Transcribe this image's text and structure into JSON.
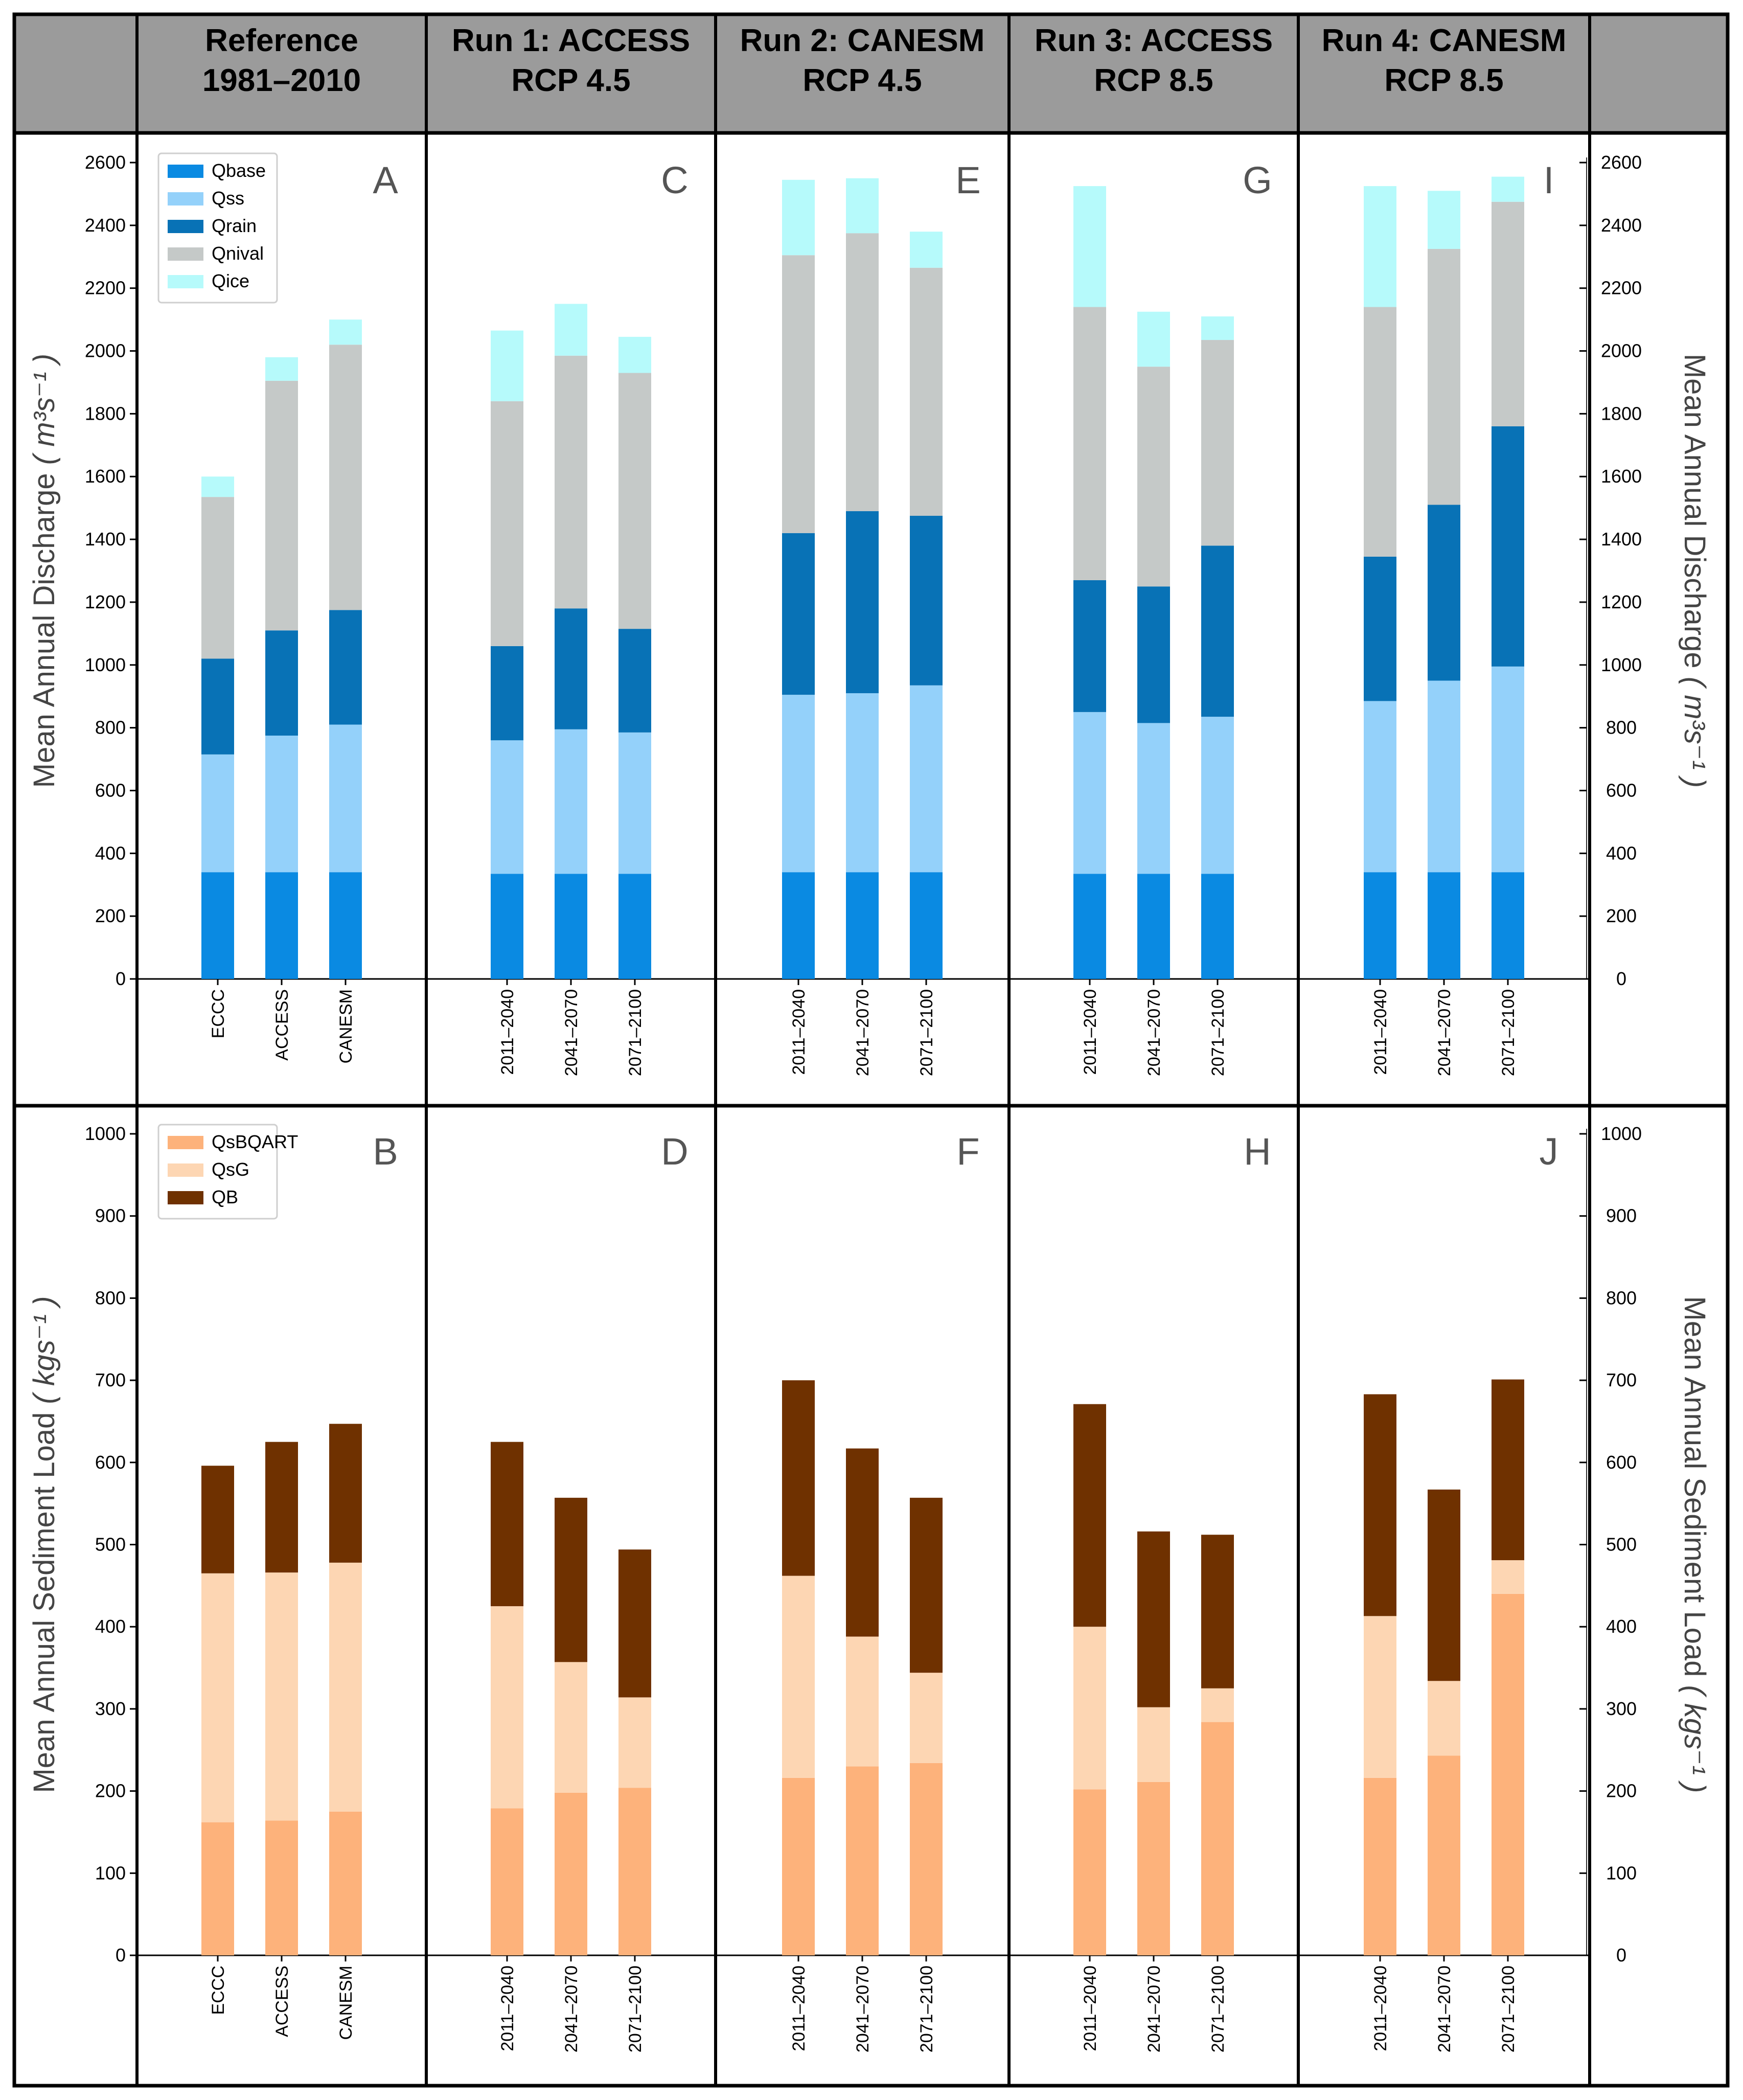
{
  "figure": {
    "headers": [
      {
        "line1": "Reference",
        "line2": "1981–2010"
      },
      {
        "line1": "Run 1: ACCESS",
        "line2": "RCP 4.5"
      },
      {
        "line1": "Run 2: CANESM",
        "line2": "RCP 4.5"
      },
      {
        "line1": "Run 3: ACCESS",
        "line2": "RCP 8.5"
      },
      {
        "line1": "Run 4: CANESM",
        "line2": "RCP 8.5"
      }
    ],
    "colors": {
      "header_bg": "#9b9b9b",
      "Qbase": "#0a8ae2",
      "Qss": "#94d1fa",
      "Qrain": "#0872b6",
      "Qnival": "#c5c9c8",
      "Qice": "#b6fafb",
      "QsBQART": "#fdb27b",
      "QsG": "#fdd6b3",
      "QB": "#6f3100"
    }
  },
  "chart_data": [
    {
      "id": "discharge",
      "type": "bar",
      "stacked": true,
      "ylabel": "Mean Annual Discharge",
      "yunit": "( m³s⁻¹ )",
      "ylim": [
        0,
        2600
      ],
      "yticks": [
        0,
        200,
        400,
        600,
        800,
        1000,
        1200,
        1400,
        1600,
        1800,
        2000,
        2200,
        2400,
        2600
      ],
      "legend": [
        "Qbase",
        "Qss",
        "Qrain",
        "Qnival",
        "Qice"
      ],
      "legend_position": "top-left",
      "panels": [
        {
          "letter": "A",
          "categories": [
            "ECCC",
            "ACCESS",
            "CANESM"
          ],
          "series": {
            "Qbase": [
              340,
              340,
              340
            ],
            "Qss": [
              375,
              435,
              470
            ],
            "Qrain": [
              305,
              335,
              365
            ],
            "Qnival": [
              515,
              795,
              845
            ],
            "Qice": [
              65,
              75,
              80
            ]
          }
        },
        {
          "letter": "C",
          "categories": [
            "2011–2040",
            "2041–2070",
            "2071–2100"
          ],
          "series": {
            "Qbase": [
              335,
              335,
              335
            ],
            "Qss": [
              425,
              460,
              450
            ],
            "Qrain": [
              300,
              385,
              330
            ],
            "Qnival": [
              780,
              805,
              815
            ],
            "Qice": [
              225,
              165,
              115
            ]
          }
        },
        {
          "letter": "E",
          "categories": [
            "2011–2040",
            "2041–2070",
            "2071–2100"
          ],
          "series": {
            "Qbase": [
              340,
              340,
              340
            ],
            "Qss": [
              565,
              570,
              595
            ],
            "Qrain": [
              515,
              580,
              540
            ],
            "Qnival": [
              885,
              885,
              790
            ],
            "Qice": [
              240,
              175,
              115
            ]
          }
        },
        {
          "letter": "G",
          "categories": [
            "2011–2040",
            "2041–2070",
            "2071–2100"
          ],
          "series": {
            "Qbase": [
              335,
              335,
              335
            ],
            "Qss": [
              515,
              480,
              500
            ],
            "Qrain": [
              420,
              435,
              545
            ],
            "Qnival": [
              870,
              700,
              655
            ],
            "Qice": [
              385,
              175,
              75
            ]
          }
        },
        {
          "letter": "I",
          "categories": [
            "2011–2040",
            "2041–2070",
            "2071–2100"
          ],
          "series": {
            "Qbase": [
              340,
              340,
              340
            ],
            "Qss": [
              545,
              610,
              655
            ],
            "Qrain": [
              460,
              560,
              765
            ],
            "Qnival": [
              795,
              815,
              715
            ],
            "Qice": [
              385,
              185,
              80
            ]
          }
        }
      ]
    },
    {
      "id": "sediment",
      "type": "bar",
      "stacked": true,
      "ylabel": "Mean Annual Sediment Load",
      "yunit": "( kgs⁻¹ )",
      "ylim": [
        0,
        1000
      ],
      "yticks": [
        0,
        100,
        200,
        300,
        400,
        500,
        600,
        700,
        800,
        900,
        1000
      ],
      "legend": [
        "QsBQART",
        "QsG",
        "QB"
      ],
      "legend_position": "top-left",
      "panels": [
        {
          "letter": "B",
          "categories": [
            "ECCC",
            "ACCESS",
            "CANESM"
          ],
          "series": {
            "QsBQART": [
              162,
              164,
              175
            ],
            "QsG": [
              303,
              302,
              303
            ],
            "QB": [
              131,
              159,
              169
            ]
          }
        },
        {
          "letter": "D",
          "categories": [
            "2011–2040",
            "2041–2070",
            "2071–2100"
          ],
          "series": {
            "QsBQART": [
              179,
              198,
              204
            ],
            "QsG": [
              246,
              159,
              110
            ],
            "QB": [
              200,
              200,
              180
            ]
          }
        },
        {
          "letter": "F",
          "categories": [
            "2011–2040",
            "2041–2070",
            "2071–2100"
          ],
          "series": {
            "QsBQART": [
              216,
              230,
              234
            ],
            "QsG": [
              246,
              158,
              110
            ],
            "QB": [
              238,
              229,
              213
            ]
          }
        },
        {
          "letter": "H",
          "categories": [
            "2011–2040",
            "2041–2070",
            "2071–2100"
          ],
          "series": {
            "QsBQART": [
              202,
              211,
              284
            ],
            "QsG": [
              198,
              91,
              41
            ],
            "QB": [
              271,
              214,
              187
            ]
          }
        },
        {
          "letter": "J",
          "categories": [
            "2011–2040",
            "2041–2070",
            "2071–2100"
          ],
          "series": {
            "QsBQART": [
              216,
              243,
              440
            ],
            "QsG": [
              197,
              91,
              41
            ],
            "QB": [
              270,
              233,
              220
            ]
          }
        }
      ]
    }
  ]
}
